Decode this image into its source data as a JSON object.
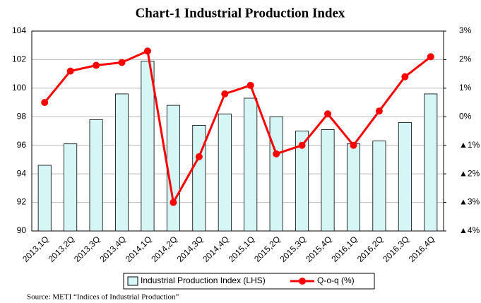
{
  "chart_data": {
    "type": "bar",
    "title": "Chart-1 Industrial Production Index",
    "source": "Source: METI “Indices of Industrial Production”",
    "categories": [
      "2013,1Q",
      "2013,2Q",
      "2013,3Q",
      "2013,4Q",
      "2014,1Q",
      "2014,2Q",
      "2014,3Q",
      "2014,4Q",
      "2015,1Q",
      "2015,2Q",
      "2015,3Q",
      "2015,4Q",
      "2016,1Q",
      "2016,2Q",
      "2016,3Q",
      "2016,4Q"
    ],
    "series": [
      {
        "name": "Industrial Production Index (LHS)",
        "type": "bar",
        "color": "#d6f5f5",
        "values": [
          94.6,
          96.1,
          97.8,
          99.6,
          101.9,
          98.8,
          97.4,
          98.2,
          99.3,
          98.0,
          97.0,
          97.1,
          96.1,
          96.3,
          97.6,
          99.6
        ]
      },
      {
        "name": "Q-o-q (%)",
        "type": "line",
        "axis": "y2",
        "color": "#ff0000",
        "values": [
          0.5,
          1.6,
          1.8,
          1.9,
          2.3,
          -3.0,
          -1.4,
          0.8,
          1.1,
          -1.3,
          -1.0,
          0.1,
          -1.0,
          0.2,
          1.4,
          2.1
        ]
      }
    ],
    "ylim": [
      90,
      104
    ],
    "yticks": [
      90,
      92,
      94,
      96,
      98,
      100,
      102,
      104
    ],
    "y2lim": [
      -4,
      3
    ],
    "y2ticks": [
      {
        "value": -4,
        "label": "▲4%"
      },
      {
        "value": -3,
        "label": "▲3%"
      },
      {
        "value": -2,
        "label": "▲2%"
      },
      {
        "value": -1,
        "label": "▲1%"
      },
      {
        "value": 0,
        "label": "0%"
      },
      {
        "value": 1,
        "label": "1%"
      },
      {
        "value": 2,
        "label": "2%"
      },
      {
        "value": 3,
        "label": "3%"
      }
    ],
    "grid": true
  }
}
